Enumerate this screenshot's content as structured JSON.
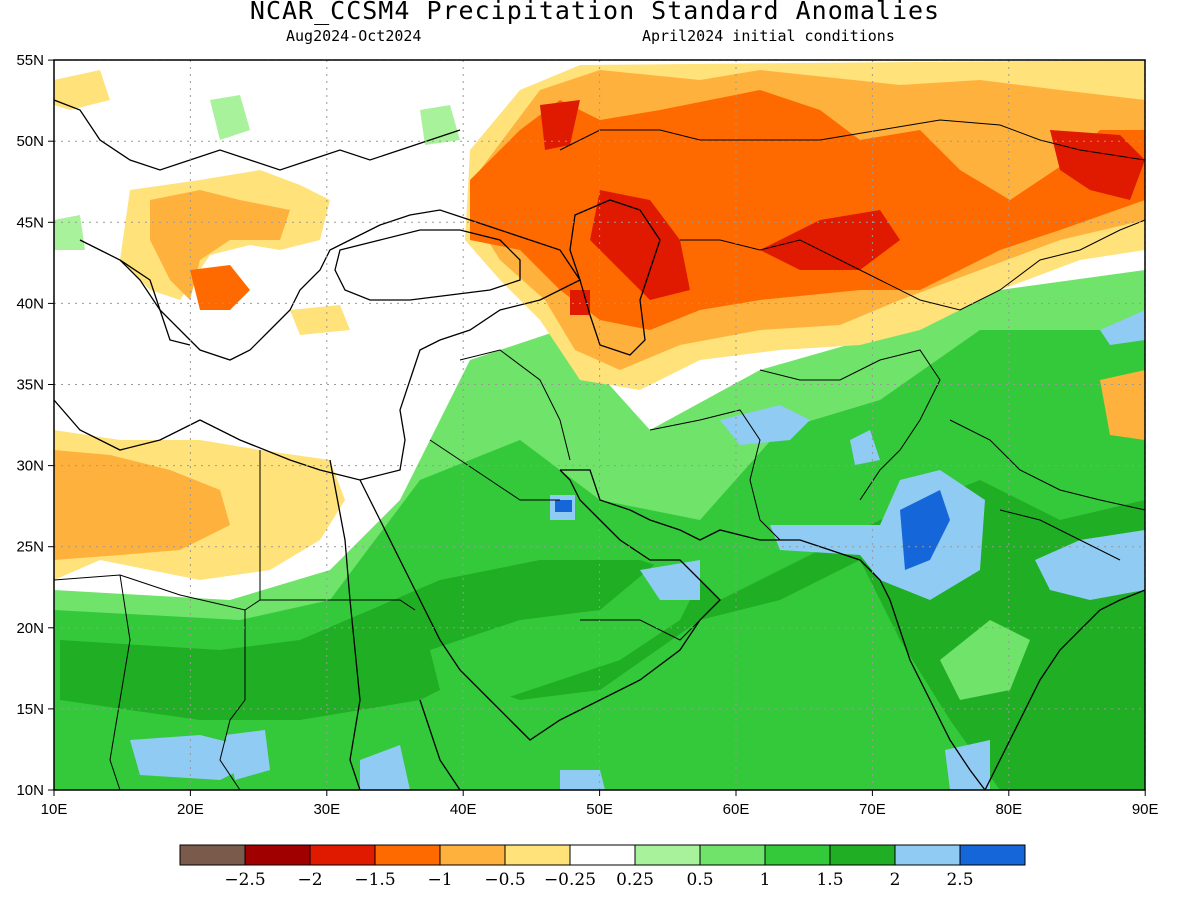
{
  "title": "NCAR_CCSM4 Precipitation Standard Anomalies",
  "subtitle_left": "Aug2024-Oct2024",
  "subtitle_right": "April2024 initial conditions",
  "lat_ticks": [
    "55N",
    "50N",
    "45N",
    "40N",
    "35N",
    "30N",
    "25N",
    "20N",
    "15N",
    "10N"
  ],
  "lon_ticks": [
    "10E",
    "20E",
    "30E",
    "40E",
    "50E",
    "60E",
    "70E",
    "80E",
    "90E"
  ],
  "colorbar": {
    "colors": [
      "#7a5a4a",
      "#a00000",
      "#e01a00",
      "#ff6a00",
      "#ffb13d",
      "#ffe27a",
      "#ffffff",
      "#a9f29c",
      "#6fe36a",
      "#34c93a",
      "#1fae24",
      "#8fcbf2",
      "#1566d8"
    ],
    "labels": [
      "-2.5",
      "-2",
      "-1.5",
      "-1",
      "-0.5",
      "-0.25",
      "0.25",
      "0.5",
      "1",
      "1.5",
      "2",
      "2.5"
    ]
  }
}
